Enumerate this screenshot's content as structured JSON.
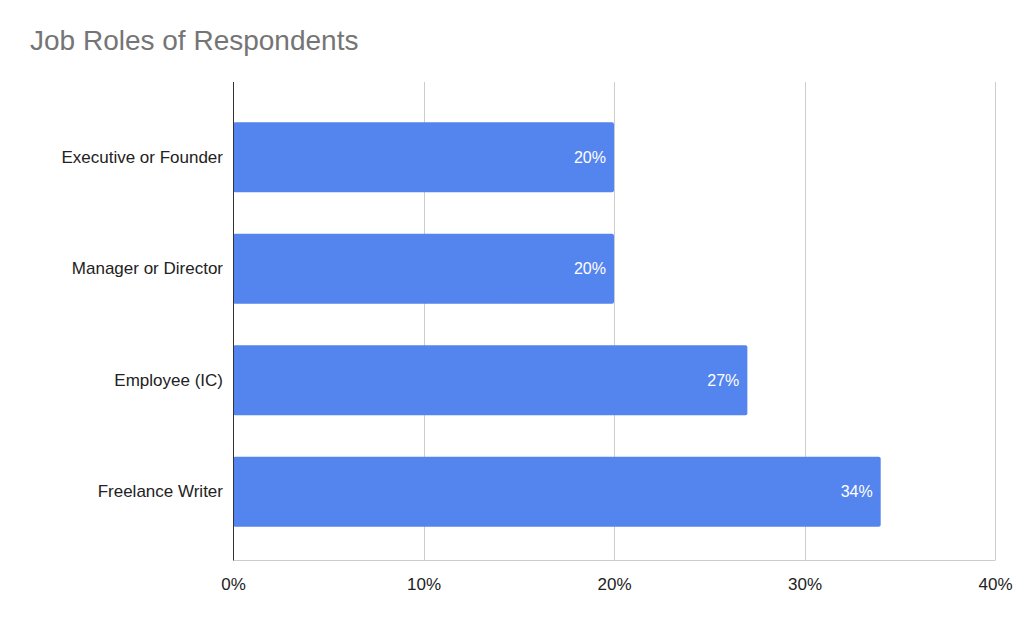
{
  "chart_data": {
    "type": "bar",
    "title": "Job Roles of Respondents",
    "orientation": "horizontal",
    "categories": [
      "Executive or Founder",
      "Manager or Director",
      "Employee (IC)",
      "Freelance Writer"
    ],
    "values": [
      20,
      20,
      27,
      34
    ],
    "value_labels": [
      "20%",
      "20%",
      "27%",
      "34%"
    ],
    "data_labels": true,
    "color": "#5484ed",
    "xlim": [
      0,
      40
    ],
    "xticks": [
      {
        "value": 0,
        "label": "0%"
      },
      {
        "value": 10,
        "label": "10%"
      },
      {
        "value": 20,
        "label": "20%"
      },
      {
        "value": 30,
        "label": "30%"
      },
      {
        "value": 40,
        "label": "40%"
      }
    ],
    "grid": true
  }
}
